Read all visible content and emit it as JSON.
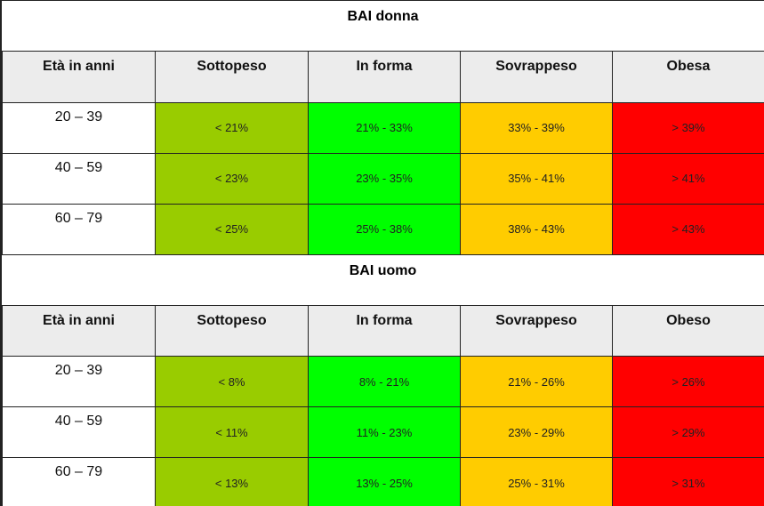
{
  "sections": [
    {
      "title": "BAI donna",
      "headers": [
        "Età in anni",
        "Sottopeso",
        "In forma",
        "Sovrappeso",
        "Obesa"
      ],
      "rows": [
        {
          "age": "20 – 39",
          "under": "< 21%",
          "fit": "21% - 33%",
          "over": "33% - 39%",
          "obese": "> 39%"
        },
        {
          "age": "40 – 59",
          "under": "< 23%",
          "fit": "23% - 35%",
          "over": "35% - 41%",
          "obese": "> 41%"
        },
        {
          "age": "60 – 79",
          "under": "< 25%",
          "fit": "25% - 38%",
          "over": "38% - 43%",
          "obese": "> 43%"
        }
      ]
    },
    {
      "title": "BAI uomo",
      "headers": [
        "Età in anni",
        "Sottopeso",
        "In forma",
        "Sovrappeso",
        "Obeso"
      ],
      "rows": [
        {
          "age": "20 – 39",
          "under": "< 8%",
          "fit": "8% - 21%",
          "over": "21% - 26%",
          "obese": "> 26%"
        },
        {
          "age": "40 – 59",
          "under": "< 11%",
          "fit": "11% - 23%",
          "over": "23% - 29%",
          "obese": "> 29%"
        },
        {
          "age": "60 – 79",
          "under": "< 13%",
          "fit": "13% - 25%",
          "over": "25% - 31%",
          "obese": "> 31%"
        }
      ]
    }
  ],
  "colors": {
    "header_bg": "#ececec",
    "underweight": "#99cc00",
    "fit": "#00ff00",
    "overweight": "#ffcc00",
    "obese": "#ff0000"
  }
}
